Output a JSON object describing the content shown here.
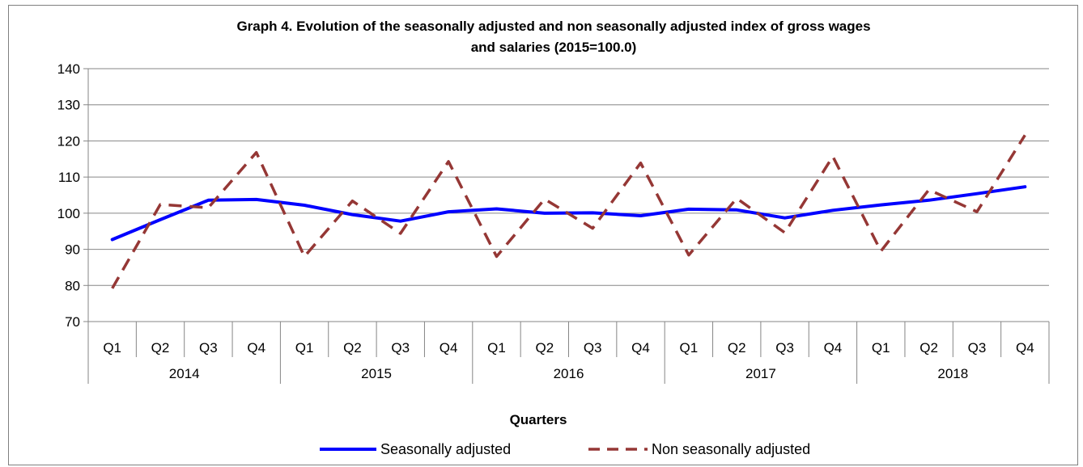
{
  "chart_data": {
    "type": "line",
    "title_line1": "Graph 4. Evolution of the seasonally adjusted and non seasonally adjusted  index of gross wages",
    "title_line2": "and salaries (2015=100.0)",
    "xlabel": "Quarters",
    "ylabel": "",
    "ylim": [
      70,
      140
    ],
    "yticks": [
      70,
      80,
      90,
      100,
      110,
      120,
      130,
      140
    ],
    "grid": "horizontal",
    "legend_position": "bottom-center",
    "categories": [
      "Q1",
      "Q2",
      "Q3",
      "Q4",
      "Q1",
      "Q2",
      "Q3",
      "Q4",
      "Q1",
      "Q2",
      "Q3",
      "Q4",
      "Q1",
      "Q2",
      "Q3",
      "Q4",
      "Q1",
      "Q2",
      "Q3",
      "Q4"
    ],
    "years": [
      "2014",
      "2015",
      "2016",
      "2017",
      "2018"
    ],
    "series": [
      {
        "name": "Seasonally adjusted",
        "color": "#0000ff",
        "style": "solid",
        "values": [
          92.7,
          98.2,
          103.6,
          103.8,
          102.2,
          99.6,
          97.8,
          100.4,
          101.2,
          100.0,
          100.1,
          99.3,
          101.1,
          100.9,
          98.7,
          100.8,
          102.3,
          103.6,
          105.4,
          107.3
        ]
      },
      {
        "name": "Non seasonally adjusted",
        "color": "#953735",
        "style": "dashed",
        "values": [
          79.2,
          102.4,
          101.5,
          116.8,
          88.0,
          103.4,
          94.4,
          114.3,
          88.0,
          103.9,
          95.8,
          113.9,
          88.4,
          104.1,
          94.6,
          115.7,
          89.5,
          106.5,
          100.4,
          121.6
        ]
      }
    ]
  }
}
